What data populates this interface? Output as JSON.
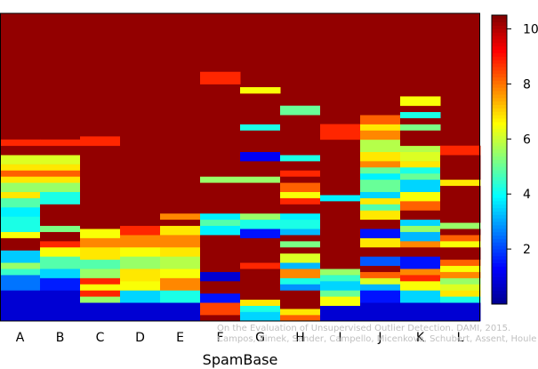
{
  "chart_data": {
    "type": "heatmap",
    "xlabel": "SpamBase",
    "columns": [
      "A",
      "B",
      "C",
      "D",
      "E",
      "F",
      "G",
      "H",
      "I",
      "J",
      "K",
      "L"
    ],
    "colorbar": {
      "range": [
        0,
        10.5
      ],
      "ticks": [
        2,
        4,
        6,
        8,
        10
      ],
      "tick_labels": [
        "2",
        "4",
        "6",
        "8",
        "10"
      ],
      "colors": [
        "#00008F",
        "#0000FF",
        "#0080FF",
        "#00FFFF",
        "#80FF80",
        "#FFFF00",
        "#FF8000",
        "#FF0000",
        "#800000"
      ]
    },
    "row_count": 100,
    "default_value": 10.3,
    "cells": [
      {
        "col": 0,
        "rows": [
          [
            0,
            10,
            0.8
          ],
          [
            10,
            15,
            2.5
          ],
          [
            15,
            17,
            4.5
          ],
          [
            17,
            19,
            5.5
          ],
          [
            19,
            23,
            3.4
          ],
          [
            23,
            27,
            10.3
          ],
          [
            27,
            29,
            6.5
          ],
          [
            29,
            34,
            4.2
          ],
          [
            34,
            37,
            3.8
          ],
          [
            37,
            40,
            4.8
          ],
          [
            40,
            42,
            6.8
          ],
          [
            42,
            45,
            5.5
          ],
          [
            45,
            47,
            6.8
          ],
          [
            47,
            49,
            8.2
          ],
          [
            49,
            51,
            6.8
          ],
          [
            51,
            54,
            6.2
          ],
          [
            54,
            57,
            10.3
          ],
          [
            57,
            59,
            8.8
          ]
        ]
      },
      {
        "col": 1,
        "rows": [
          [
            0,
            10,
            0.8
          ],
          [
            10,
            14,
            1.6
          ],
          [
            14,
            17,
            3.5
          ],
          [
            17,
            21,
            4.8
          ],
          [
            21,
            24,
            6.5
          ],
          [
            24,
            26,
            8.8
          ],
          [
            26,
            29,
            10.3
          ],
          [
            29,
            31,
            5.2
          ],
          [
            31,
            38,
            10.3
          ],
          [
            38,
            42,
            4.2
          ],
          [
            42,
            45,
            5.5
          ],
          [
            45,
            47,
            6.8
          ],
          [
            47,
            49,
            8.2
          ],
          [
            49,
            51,
            6.8
          ],
          [
            51,
            54,
            6.2
          ],
          [
            54,
            57,
            10.3
          ],
          [
            57,
            59,
            8.8
          ]
        ]
      },
      {
        "col": 2,
        "rows": [
          [
            0,
            6,
            0.8
          ],
          [
            6,
            8,
            5.5
          ],
          [
            8,
            10,
            8.8
          ],
          [
            10,
            12,
            6.5
          ],
          [
            12,
            14,
            8.8
          ],
          [
            14,
            17,
            5.5
          ],
          [
            17,
            20,
            4.8
          ],
          [
            20,
            24,
            6.8
          ],
          [
            24,
            27,
            7.8
          ],
          [
            27,
            30,
            6.5
          ],
          [
            30,
            57,
            10.3
          ],
          [
            57,
            60,
            8.8
          ]
        ]
      },
      {
        "col": 3,
        "rows": [
          [
            0,
            6,
            0.8
          ],
          [
            6,
            10,
            3.5
          ],
          [
            10,
            13,
            6.5
          ],
          [
            13,
            17,
            6.8
          ],
          [
            17,
            21,
            5.5
          ],
          [
            21,
            24,
            6.5
          ],
          [
            24,
            28,
            7.8
          ],
          [
            28,
            31,
            8.8
          ],
          [
            31,
            100,
            10.3
          ]
        ]
      },
      {
        "col": 4,
        "rows": [
          [
            0,
            6,
            0.8
          ],
          [
            6,
            10,
            4.2
          ],
          [
            10,
            14,
            7.8
          ],
          [
            14,
            17,
            6.5
          ],
          [
            17,
            21,
            5.8
          ],
          [
            21,
            24,
            6.8
          ],
          [
            24,
            28,
            7.8
          ],
          [
            28,
            31,
            6.8
          ],
          [
            31,
            33,
            10.3
          ],
          [
            33,
            35,
            7.8
          ],
          [
            35,
            100,
            10.3
          ]
        ]
      },
      {
        "col": 5,
        "rows": [
          [
            0,
            2,
            10.3
          ],
          [
            2,
            6,
            8.5
          ],
          [
            6,
            9,
            1.5
          ],
          [
            9,
            13,
            10.3
          ],
          [
            13,
            16,
            0.8
          ],
          [
            16,
            28,
            10.3
          ],
          [
            28,
            31,
            3.8
          ],
          [
            31,
            33,
            4.8
          ],
          [
            33,
            35,
            3.8
          ],
          [
            35,
            45,
            10.3
          ],
          [
            45,
            47,
            5.5
          ],
          [
            47,
            77,
            10.3
          ],
          [
            77,
            81,
            8.8
          ]
        ]
      },
      {
        "col": 6,
        "rows": [
          [
            0,
            3,
            3.5
          ],
          [
            3,
            5,
            4.2
          ],
          [
            5,
            7,
            6.8
          ],
          [
            7,
            17,
            10.3
          ],
          [
            17,
            19,
            8.8
          ],
          [
            19,
            27,
            10.3
          ],
          [
            27,
            30,
            1.5
          ],
          [
            30,
            33,
            4.2
          ],
          [
            33,
            35,
            5.5
          ],
          [
            35,
            45,
            10.3
          ],
          [
            45,
            47,
            5.5
          ],
          [
            47,
            52,
            10.3
          ],
          [
            52,
            55,
            1.2
          ],
          [
            55,
            62,
            10.3
          ],
          [
            62,
            64,
            4.2
          ],
          [
            64,
            74,
            10.3
          ],
          [
            74,
            76,
            6.5
          ]
        ]
      },
      {
        "col": 7,
        "rows": [
          [
            0,
            2,
            8.2
          ],
          [
            2,
            4,
            6.8
          ],
          [
            4,
            10,
            10.3
          ],
          [
            10,
            12,
            2.8
          ],
          [
            12,
            14,
            4.2
          ],
          [
            14,
            17,
            7.8
          ],
          [
            17,
            19,
            3.2
          ],
          [
            19,
            22,
            6.2
          ],
          [
            22,
            24,
            10.3
          ],
          [
            24,
            26,
            5.2
          ],
          [
            26,
            28,
            10.3
          ],
          [
            28,
            30,
            3.2
          ],
          [
            30,
            33,
            4.2
          ],
          [
            33,
            35,
            3.8
          ],
          [
            35,
            38,
            10.3
          ],
          [
            38,
            40,
            8.8
          ],
          [
            40,
            42,
            6.5
          ],
          [
            42,
            45,
            8.2
          ],
          [
            45,
            47,
            10.3
          ],
          [
            47,
            49,
            8.8
          ],
          [
            49,
            52,
            10.3
          ],
          [
            52,
            54,
            4.2
          ],
          [
            54,
            67,
            10.3
          ],
          [
            67,
            70,
            5.0
          ]
        ]
      },
      {
        "col": 8,
        "rows": [
          [
            0,
            5,
            0.8
          ],
          [
            5,
            8,
            6.5
          ],
          [
            8,
            10,
            5.0
          ],
          [
            10,
            13,
            3.5
          ],
          [
            13,
            15,
            4.5
          ],
          [
            15,
            17,
            5.5
          ],
          [
            17,
            39,
            10.3
          ],
          [
            39,
            41,
            3.8
          ],
          [
            41,
            100,
            10.3
          ],
          [
            100,
            100,
            10.3
          ],
          [
            59,
            64,
            8.8
          ]
        ]
      },
      {
        "col": 9,
        "rows": [
          [
            0,
            6,
            0.8
          ],
          [
            6,
            10,
            1.5
          ],
          [
            10,
            12,
            3.2
          ],
          [
            12,
            14,
            6.2
          ],
          [
            14,
            16,
            8.2
          ],
          [
            16,
            18,
            10.3
          ],
          [
            18,
            21,
            2.2
          ],
          [
            21,
            24,
            10.3
          ],
          [
            24,
            27,
            6.8
          ],
          [
            27,
            30,
            1.5
          ],
          [
            30,
            33,
            10.3
          ],
          [
            33,
            36,
            6.8
          ],
          [
            36,
            38,
            4.8
          ],
          [
            38,
            40,
            6.8
          ],
          [
            40,
            42,
            3.5
          ],
          [
            42,
            46,
            5.0
          ],
          [
            46,
            48,
            3.8
          ],
          [
            48,
            50,
            5.0
          ],
          [
            50,
            52,
            7.8
          ],
          [
            52,
            55,
            6.8
          ],
          [
            55,
            59,
            5.8
          ],
          [
            59,
            62,
            7.8
          ],
          [
            62,
            64,
            6.8
          ],
          [
            64,
            67,
            8.2
          ],
          [
            67,
            70,
            10.3
          ]
        ]
      },
      {
        "col": 10,
        "rows": [
          [
            0,
            6,
            0.8
          ],
          [
            6,
            10,
            3.5
          ],
          [
            10,
            13,
            6.5
          ],
          [
            13,
            15,
            8.8
          ],
          [
            15,
            17,
            7.8
          ],
          [
            17,
            21,
            1.5
          ],
          [
            21,
            24,
            10.3
          ],
          [
            24,
            26,
            7.8
          ],
          [
            26,
            29,
            3.2
          ],
          [
            29,
            31,
            5.5
          ],
          [
            31,
            33,
            3.5
          ],
          [
            33,
            36,
            10.3
          ],
          [
            36,
            39,
            8.2
          ],
          [
            39,
            42,
            6.5
          ],
          [
            42,
            46,
            3.5
          ],
          [
            46,
            48,
            5.0
          ],
          [
            48,
            50,
            4.2
          ],
          [
            50,
            52,
            6.8
          ],
          [
            52,
            55,
            6.2
          ],
          [
            55,
            57,
            5.8
          ],
          [
            57,
            62,
            10.3
          ],
          [
            62,
            64,
            5.2
          ],
          [
            64,
            66,
            10.3
          ],
          [
            66,
            68,
            4.2
          ],
          [
            68,
            70,
            10.3
          ],
          [
            70,
            73,
            6.5
          ]
        ]
      },
      {
        "col": 11,
        "rows": [
          [
            0,
            6,
            0.8
          ],
          [
            6,
            8,
            4.2
          ],
          [
            8,
            10,
            6.8
          ],
          [
            10,
            12,
            6.2
          ],
          [
            12,
            14,
            5.5
          ],
          [
            14,
            16,
            7.8
          ],
          [
            16,
            18,
            6.5
          ],
          [
            18,
            20,
            8.2
          ],
          [
            20,
            24,
            10.3
          ],
          [
            24,
            26,
            6.5
          ],
          [
            26,
            28,
            8.2
          ],
          [
            28,
            30,
            10.3
          ],
          [
            30,
            32,
            5.5
          ],
          [
            32,
            44,
            10.3
          ],
          [
            44,
            46,
            6.8
          ],
          [
            46,
            54,
            10.3
          ],
          [
            54,
            57,
            8.8
          ]
        ]
      }
    ]
  },
  "watermark": {
    "line1": "On the Evaluation of Unsupervised Outlier Detection. DAMI, 2015.",
    "line2": "Campos, Zimek, Sander, Campello, Micenkova, Schubert, Assent, Houle"
  }
}
